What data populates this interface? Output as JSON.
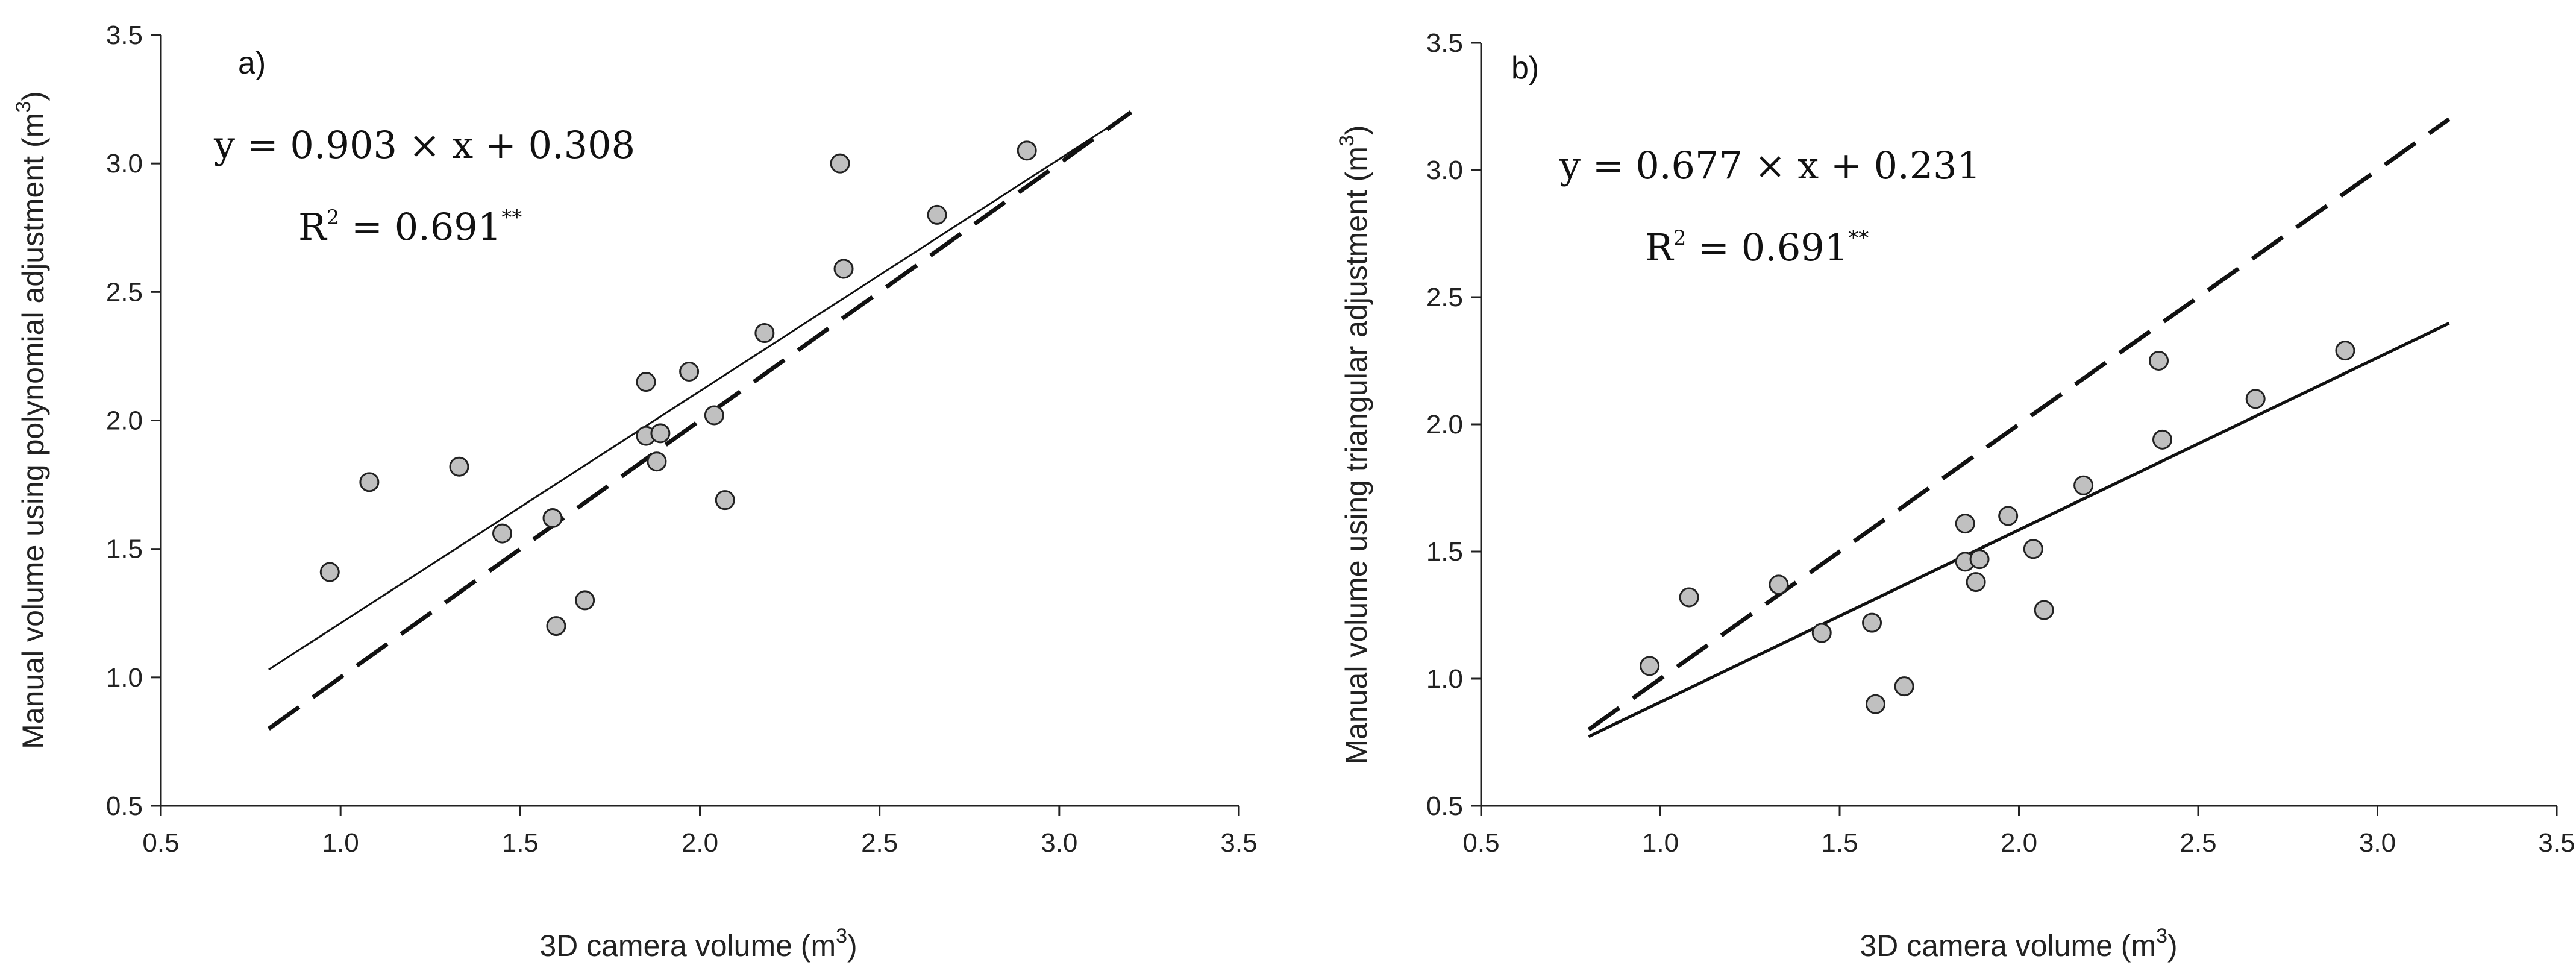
{
  "chart_data": [
    {
      "type": "scatter",
      "panel_label": "a)",
      "xlabel": "3D camera volume (m",
      "xlabel_sup": "3",
      "xlabel_tail": ")",
      "ylabel": "Manual volume using polynomial adjustment (m",
      "ylabel_sup": "3",
      "ylabel_tail": ")",
      "xlim": [
        0.5,
        3.5
      ],
      "ylim": [
        0.5,
        3.5
      ],
      "xticks": [
        "0.5",
        "1.0",
        "1.5",
        "2.0",
        "2.5",
        "3.0",
        "3.5"
      ],
      "yticks": [
        "0.5",
        "1.0",
        "1.5",
        "2.0",
        "2.5",
        "3.0",
        "3.5"
      ],
      "equation": "y = 0.903 × x + 0.308",
      "r2_prefix": "R",
      "r2_sup": "2",
      "r2_value": " = 0.691",
      "r2_stars": "**",
      "regression": {
        "slope": 0.903,
        "intercept": 0.308,
        "x_range": [
          0.8,
          3.2
        ]
      },
      "reference_line": {
        "slope": 1,
        "intercept": 0,
        "x_range": [
          0.8,
          3.2
        ],
        "style": "dashed"
      },
      "points": [
        {
          "x": 0.97,
          "y": 1.41
        },
        {
          "x": 1.08,
          "y": 1.76
        },
        {
          "x": 1.33,
          "y": 1.82
        },
        {
          "x": 1.45,
          "y": 1.56
        },
        {
          "x": 1.59,
          "y": 1.62
        },
        {
          "x": 1.6,
          "y": 1.2
        },
        {
          "x": 1.68,
          "y": 1.3
        },
        {
          "x": 1.85,
          "y": 2.15
        },
        {
          "x": 1.85,
          "y": 1.94
        },
        {
          "x": 1.88,
          "y": 1.84
        },
        {
          "x": 1.89,
          "y": 1.95
        },
        {
          "x": 1.97,
          "y": 2.19
        },
        {
          "x": 2.04,
          "y": 2.02
        },
        {
          "x": 2.07,
          "y": 1.69
        },
        {
          "x": 2.18,
          "y": 2.34
        },
        {
          "x": 2.39,
          "y": 3.0
        },
        {
          "x": 2.4,
          "y": 2.59
        },
        {
          "x": 2.66,
          "y": 2.8
        },
        {
          "x": 2.91,
          "y": 3.05
        }
      ]
    },
    {
      "type": "scatter",
      "panel_label": "b)",
      "xlabel": "3D camera volume (m",
      "xlabel_sup": "3",
      "xlabel_tail": ")",
      "ylabel": "Manual volume using triangular adjustment (m",
      "ylabel_sup": "3",
      "ylabel_tail": ")",
      "xlim": [
        0.5,
        3.5
      ],
      "ylim": [
        0.5,
        3.5
      ],
      "xticks": [
        "0.5",
        "1.0",
        "1.5",
        "2.0",
        "2.5",
        "3.0",
        "3.5"
      ],
      "yticks": [
        "0.5",
        "1.0",
        "1.5",
        "2.0",
        "2.5",
        "3.0",
        "3.5"
      ],
      "equation": "y = 0.677 × x + 0.231",
      "r2_prefix": "R",
      "r2_sup": "2",
      "r2_value": " = 0.691",
      "r2_stars": "**",
      "regression": {
        "slope": 0.677,
        "intercept": 0.231,
        "x_range": [
          0.8,
          3.2
        ]
      },
      "reference_line": {
        "slope": 1,
        "intercept": 0,
        "x_range": [
          0.8,
          3.2
        ],
        "style": "dashed"
      },
      "points": [
        {
          "x": 0.97,
          "y": 1.05
        },
        {
          "x": 1.08,
          "y": 1.32
        },
        {
          "x": 1.33,
          "y": 1.37
        },
        {
          "x": 1.45,
          "y": 1.18
        },
        {
          "x": 1.59,
          "y": 1.22
        },
        {
          "x": 1.6,
          "y": 0.9
        },
        {
          "x": 1.68,
          "y": 0.97
        },
        {
          "x": 1.85,
          "y": 1.61
        },
        {
          "x": 1.85,
          "y": 1.46
        },
        {
          "x": 1.88,
          "y": 1.38
        },
        {
          "x": 1.89,
          "y": 1.47
        },
        {
          "x": 1.97,
          "y": 1.64
        },
        {
          "x": 2.04,
          "y": 1.51
        },
        {
          "x": 2.07,
          "y": 1.27
        },
        {
          "x": 2.18,
          "y": 1.76
        },
        {
          "x": 2.39,
          "y": 2.25
        },
        {
          "x": 2.4,
          "y": 1.94
        },
        {
          "x": 2.66,
          "y": 2.1
        },
        {
          "x": 2.91,
          "y": 2.29
        }
      ]
    }
  ]
}
